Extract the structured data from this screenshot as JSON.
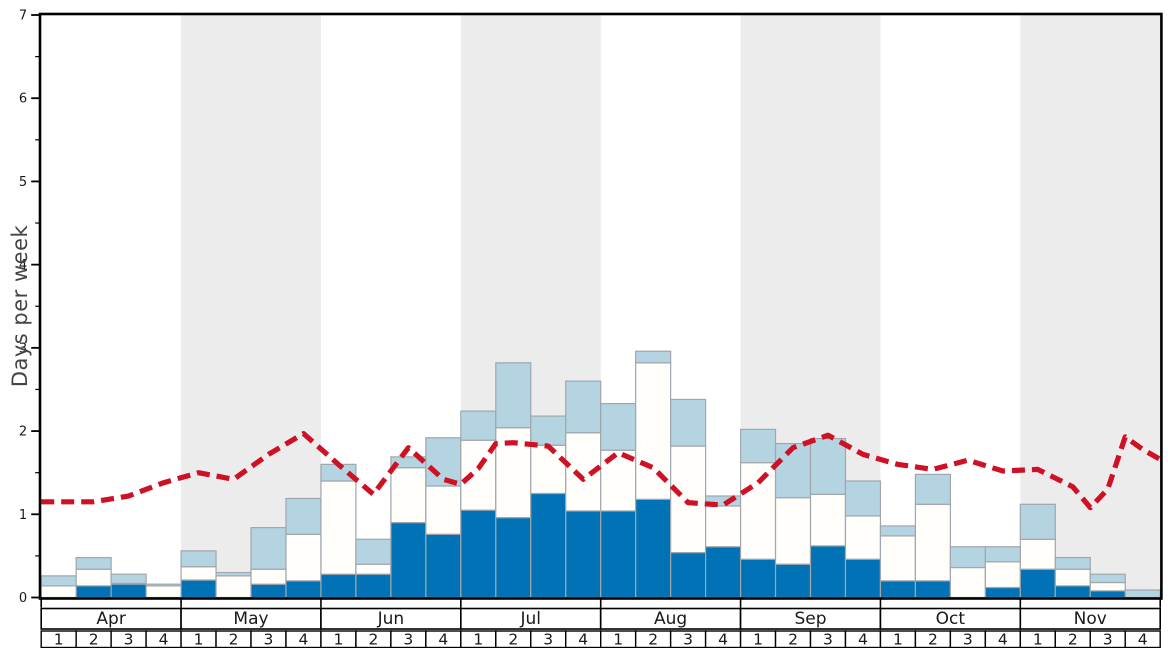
{
  "chart_data": {
    "type": "bar",
    "ylabel": "Days per week",
    "ylim": [
      0,
      7
    ],
    "ytick_labels": [
      "0",
      "1",
      "2",
      "3",
      "4",
      "5",
      "6",
      "7"
    ],
    "minor_ytick_step": 0.5,
    "grid": false,
    "legend": "none",
    "months": [
      "Apr",
      "May",
      "Jun",
      "Jul",
      "Aug",
      "Sep",
      "Oct",
      "Nov"
    ],
    "week_labels": [
      "1",
      "2",
      "3",
      "4"
    ],
    "weeks_per_month": 4,
    "shaded_month_indices": [
      1,
      3,
      5,
      7
    ],
    "bar_stack_columns": [
      "dark_blue_top",
      "white_top",
      "light_blue_top"
    ],
    "bar_values": [
      [
        0.0,
        0.14,
        0.26
      ],
      [
        0.14,
        0.34,
        0.48
      ],
      [
        0.16,
        0.17,
        0.28
      ],
      [
        0.0,
        0.14,
        0.16
      ],
      [
        0.21,
        0.37,
        0.56
      ],
      [
        0.0,
        0.26,
        0.3
      ],
      [
        0.16,
        0.34,
        0.84
      ],
      [
        0.2,
        0.76,
        1.19
      ],
      [
        0.28,
        1.4,
        1.6
      ],
      [
        0.28,
        0.4,
        0.7
      ],
      [
        0.9,
        1.56,
        1.69
      ],
      [
        0.76,
        1.34,
        1.92
      ],
      [
        1.05,
        1.89,
        2.24
      ],
      [
        0.96,
        2.04,
        2.82
      ],
      [
        1.25,
        1.83,
        2.18
      ],
      [
        1.04,
        1.98,
        2.6
      ],
      [
        1.04,
        1.77,
        2.33
      ],
      [
        1.18,
        2.82,
        2.96
      ],
      [
        0.54,
        1.82,
        2.38
      ],
      [
        0.61,
        1.1,
        1.22
      ],
      [
        0.46,
        1.62,
        2.02
      ],
      [
        0.4,
        1.2,
        1.85
      ],
      [
        0.62,
        1.24,
        1.91
      ],
      [
        0.46,
        0.98,
        1.4
      ],
      [
        0.2,
        0.74,
        0.86
      ],
      [
        0.2,
        1.12,
        1.48
      ],
      [
        0.0,
        0.36,
        0.61
      ],
      [
        0.12,
        0.43,
        0.61
      ],
      [
        0.34,
        0.7,
        1.12
      ],
      [
        0.14,
        0.34,
        0.48
      ],
      [
        0.08,
        0.18,
        0.28
      ],
      [
        0.0,
        0.0,
        0.09
      ]
    ],
    "red_line": {
      "style": "dashed",
      "points_week_units": [
        [
          0.0,
          1.15
        ],
        [
          0.5,
          1.15
        ],
        [
          1.5,
          1.15
        ],
        [
          2.5,
          1.22
        ],
        [
          3.5,
          1.38
        ],
        [
          4.5,
          1.5
        ],
        [
          5.5,
          1.42
        ],
        [
          6.5,
          1.72
        ],
        [
          7.5,
          1.97
        ],
        [
          8.5,
          1.6
        ],
        [
          9.5,
          1.24
        ],
        [
          10.5,
          1.8
        ],
        [
          11.5,
          1.42
        ],
        [
          12.0,
          1.36
        ],
        [
          12.5,
          1.55
        ],
        [
          13.0,
          1.85
        ],
        [
          13.5,
          1.86
        ],
        [
          14.5,
          1.82
        ],
        [
          15.5,
          1.42
        ],
        [
          16.5,
          1.74
        ],
        [
          17.5,
          1.56
        ],
        [
          18.5,
          1.14
        ],
        [
          19.5,
          1.11
        ],
        [
          20.5,
          1.38
        ],
        [
          21.5,
          1.8
        ],
        [
          22.5,
          1.95
        ],
        [
          23.5,
          1.72
        ],
        [
          24.5,
          1.6
        ],
        [
          25.5,
          1.54
        ],
        [
          26.5,
          1.65
        ],
        [
          27.5,
          1.52
        ],
        [
          28.5,
          1.54
        ],
        [
          29.5,
          1.33
        ],
        [
          30.0,
          1.08
        ],
        [
          30.5,
          1.3
        ],
        [
          31.0,
          1.93
        ],
        [
          31.5,
          1.78
        ],
        [
          32.0,
          1.66
        ]
      ]
    },
    "colors": {
      "dark_blue": "#0072b5",
      "white_bar": "#fffefa",
      "light_blue": "#b5d4e1",
      "bar_border": "#a0a6ac",
      "red_line": "#cf1125",
      "shaded_band": "#ececec",
      "axis": "#000000",
      "tick_text": "#1a1a1a",
      "label_text": "#444444"
    }
  }
}
